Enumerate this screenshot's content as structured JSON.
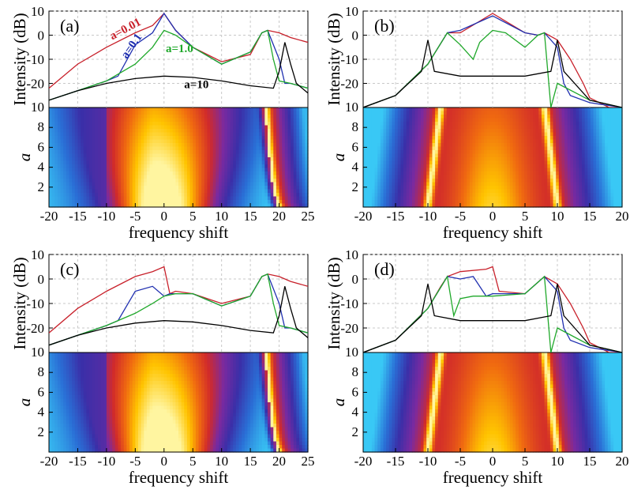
{
  "chart_data": [
    {
      "panel_label": "(a)",
      "type": "line",
      "ylabel": "Intensity (dB)",
      "xlim": [
        -20,
        25
      ],
      "ylim": [
        -30,
        10
      ],
      "yticks": [
        10,
        0,
        -10,
        -20
      ],
      "grid": true,
      "series": [
        {
          "name": "a=0.01",
          "color": "#c8202a",
          "x": [
            -20,
            -15,
            -10,
            -5,
            -2,
            0,
            2,
            5,
            10,
            15,
            17,
            18,
            20,
            22,
            25
          ],
          "y": [
            -22,
            -12,
            -5,
            1,
            4,
            9,
            2,
            -5,
            -11,
            -8,
            1,
            2,
            1,
            -1,
            -3
          ]
        },
        {
          "name": "a=0.1",
          "color": "#2030b0",
          "x": [
            -20,
            -15,
            -10,
            -8,
            -5,
            -2,
            0,
            2,
            5,
            10,
            15,
            17,
            18,
            20,
            21,
            22,
            25
          ],
          "y": [
            -27,
            -23,
            -19,
            -17,
            -4,
            1,
            9,
            2,
            -5,
            -12,
            -7,
            1,
            2,
            -10,
            -20,
            -20,
            -22
          ]
        },
        {
          "name": "a=1.0",
          "color": "#1fa82a",
          "x": [
            -20,
            -15,
            -10,
            -5,
            -2,
            0,
            2,
            5,
            10,
            15,
            17,
            18,
            19,
            20,
            22,
            25
          ],
          "y": [
            -27,
            -23,
            -19,
            -12,
            -5,
            2,
            0,
            -5,
            -12,
            -7,
            1,
            2,
            -10,
            -19,
            -20,
            -22
          ]
        },
        {
          "name": "a=10",
          "color": "#000000",
          "x": [
            -20,
            -15,
            -10,
            -5,
            0,
            5,
            10,
            15,
            19,
            20,
            21,
            22,
            23,
            25
          ],
          "y": [
            -27,
            -23,
            -20,
            -18,
            -17,
            -17.5,
            -19,
            -21,
            -22,
            -15,
            -3,
            -12,
            -20,
            -24
          ]
        }
      ],
      "heatmap": {
        "ylabel": "a",
        "xlabel": "frequency shift",
        "xticks": [
          -20,
          -15,
          -10,
          -5,
          0,
          5,
          10,
          15,
          20,
          25
        ],
        "yticks": [
          2,
          4,
          6,
          8,
          10
        ],
        "xlim": [
          -20,
          25
        ],
        "ylim": [
          0,
          10
        ],
        "colormap": [
          "#39c8f5",
          "#2a6fd6",
          "#3a2fa8",
          "#7a2aa0",
          "#d12a2a",
          "#f06a10",
          "#ffc400",
          "#fff5a0"
        ],
        "center_peak_x": 0,
        "side_peak_x": 17.5,
        "side_peak_x_at_ymin": 20,
        "symmetric": false
      }
    },
    {
      "panel_label": "(b)",
      "type": "line",
      "ylabel": "Intensity (dB)",
      "xlim": [
        -20,
        20
      ],
      "ylim": [
        -30,
        10
      ],
      "yticks": [
        10,
        0,
        -10,
        -20
      ],
      "grid": true,
      "series": [
        {
          "name": "",
          "color": "#c8202a",
          "x": [
            -20,
            -15,
            -10,
            -7,
            -5,
            0,
            5,
            7,
            8,
            10,
            12,
            14,
            15,
            18,
            20
          ],
          "y": [
            -30,
            -25,
            -12,
            1,
            1,
            9,
            1,
            0,
            1,
            -2,
            -10,
            -20,
            -26,
            -30,
            -30
          ]
        },
        {
          "name": "",
          "color": "#2030b0",
          "x": [
            -20,
            -15,
            -10,
            -7,
            -5,
            0,
            5,
            7,
            8,
            10,
            11,
            12,
            15,
            20
          ],
          "y": [
            -30,
            -25,
            -12,
            1,
            2,
            8,
            1,
            0,
            1,
            -5,
            -20,
            -25,
            -28,
            -30
          ]
        },
        {
          "name": "",
          "color": "#1fa82a",
          "x": [
            -20,
            -15,
            -10,
            -7,
            -5,
            -3,
            -2,
            0,
            2,
            5,
            7,
            8,
            9,
            10,
            15,
            20
          ],
          "y": [
            -30,
            -25,
            -12,
            1,
            -4,
            -10,
            -3,
            2,
            1,
            -5,
            0,
            1,
            -30,
            -20,
            -27,
            -30
          ]
        },
        {
          "name": "",
          "color": "#000000",
          "x": [
            -20,
            -15,
            -11,
            -10,
            -9,
            -5,
            0,
            5,
            9,
            10,
            11,
            15,
            20
          ],
          "y": [
            -30,
            -25,
            -15,
            -2,
            -15,
            -17,
            -17,
            -17,
            -15,
            -2,
            -15,
            -27,
            -30
          ]
        }
      ],
      "heatmap": {
        "ylabel": "a",
        "xlabel": "frequency shift",
        "xticks": [
          -20,
          -15,
          -10,
          -5,
          0,
          5,
          10,
          15,
          20
        ],
        "yticks": [
          2,
          4,
          6,
          8,
          10
        ],
        "xlim": [
          -20,
          20
        ],
        "ylim": [
          0,
          10
        ],
        "colormap": [
          "#39c8f5",
          "#2a6fd6",
          "#3a2fa8",
          "#7a2aa0",
          "#d12a2a",
          "#f06a10",
          "#ffc400",
          "#fff5a0"
        ],
        "center_peak_x": 0,
        "side_peak_x": 8,
        "side_peak_x_at_ymin": 10,
        "symmetric": true
      }
    },
    {
      "panel_label": "(c)",
      "type": "line",
      "ylabel": "Intensity (dB)",
      "xlim": [
        -20,
        25
      ],
      "ylim": [
        -30,
        10
      ],
      "yticks": [
        10,
        0,
        -10,
        -20
      ],
      "grid": true,
      "series": [
        {
          "name": "",
          "color": "#c8202a",
          "x": [
            -20,
            -15,
            -10,
            -5,
            -2,
            0,
            1,
            2,
            5,
            10,
            15,
            17,
            18,
            20,
            22,
            25
          ],
          "y": [
            -22,
            -12,
            -5,
            1,
            3,
            5,
            -6,
            -5,
            -6,
            -10,
            -7,
            1,
            2,
            1,
            -1,
            -3
          ]
        },
        {
          "name": "",
          "color": "#2030b0",
          "x": [
            -20,
            -15,
            -10,
            -8,
            -5,
            -2,
            0,
            1,
            5,
            10,
            15,
            17,
            18,
            20,
            21,
            22,
            25
          ],
          "y": [
            -27,
            -23,
            -19,
            -17,
            -5,
            -3,
            -7,
            -6,
            -6,
            -11,
            -7,
            1,
            2,
            -10,
            -20,
            -20,
            -22
          ]
        },
        {
          "name": "",
          "color": "#1fa82a",
          "x": [
            -20,
            -15,
            -10,
            -5,
            -2,
            0,
            2,
            5,
            10,
            15,
            17,
            18,
            19,
            20,
            22,
            25
          ],
          "y": [
            -27,
            -23,
            -19,
            -14,
            -10,
            -7,
            -6,
            -6,
            -11,
            -7,
            1,
            2,
            -10,
            -19,
            -20,
            -22
          ]
        },
        {
          "name": "",
          "color": "#000000",
          "x": [
            -20,
            -15,
            -10,
            -5,
            0,
            5,
            10,
            15,
            19,
            20,
            21,
            22,
            23,
            25
          ],
          "y": [
            -27,
            -23,
            -20,
            -18,
            -17,
            -17.5,
            -19,
            -21,
            -22,
            -15,
            -3,
            -12,
            -20,
            -24
          ]
        }
      ],
      "heatmap": {
        "ylabel": "a",
        "xlabel": "frequency shift",
        "xticks": [
          -20,
          -15,
          -10,
          -5,
          0,
          5,
          10,
          15,
          20,
          25
        ],
        "yticks": [
          2,
          4,
          6,
          8,
          10
        ],
        "xlim": [
          -20,
          25
        ],
        "ylim": [
          0,
          10
        ],
        "colormap": [
          "#39c8f5",
          "#2a6fd6",
          "#3a2fa8",
          "#7a2aa0",
          "#d12a2a",
          "#f06a10",
          "#ffc400",
          "#fff5a0"
        ],
        "center_peak_x": 0,
        "side_peak_x": 17.5,
        "side_peak_x_at_ymin": 20,
        "symmetric": false
      }
    },
    {
      "panel_label": "(d)",
      "type": "line",
      "ylabel": "Intensity (dB)",
      "xlim": [
        -20,
        20
      ],
      "ylim": [
        -30,
        10
      ],
      "yticks": [
        10,
        0,
        -10,
        -20
      ],
      "grid": true,
      "series": [
        {
          "name": "",
          "color": "#c8202a",
          "x": [
            -20,
            -15,
            -10,
            -8,
            -7,
            -5,
            -1,
            0,
            1,
            5,
            8,
            10,
            12,
            14,
            15,
            18,
            20
          ],
          "y": [
            -30,
            -25,
            -12,
            -3,
            1,
            3,
            4,
            5,
            -5,
            -6,
            1,
            -2,
            -10,
            -20,
            -26,
            -30,
            -30
          ]
        },
        {
          "name": "",
          "color": "#2030b0",
          "x": [
            -20,
            -15,
            -10,
            -7,
            -5,
            -3,
            -1,
            0,
            5,
            8,
            10,
            11,
            12,
            15,
            20
          ],
          "y": [
            -30,
            -25,
            -12,
            1,
            0,
            1,
            -7,
            -6,
            -6,
            1,
            -5,
            -20,
            -25,
            -28,
            -30
          ]
        },
        {
          "name": "",
          "color": "#1fa82a",
          "x": [
            -20,
            -15,
            -10,
            -7,
            -6,
            -5,
            -3,
            0,
            5,
            8,
            9,
            10,
            15,
            20
          ],
          "y": [
            -30,
            -25,
            -12,
            1,
            -15,
            -8,
            -7,
            -7,
            -6,
            1,
            -30,
            -20,
            -27,
            -30
          ]
        },
        {
          "name": "",
          "color": "#000000",
          "x": [
            -20,
            -15,
            -11,
            -10,
            -9,
            -5,
            0,
            5,
            9,
            10,
            11,
            15,
            20
          ],
          "y": [
            -30,
            -25,
            -15,
            -2,
            -15,
            -17,
            -17,
            -17,
            -15,
            -2,
            -15,
            -27,
            -30
          ]
        }
      ],
      "heatmap": {
        "ylabel": "a",
        "xlabel": "frequency shift",
        "xticks": [
          -20,
          -15,
          -10,
          -5,
          0,
          5,
          10,
          15,
          20
        ],
        "yticks": [
          2,
          4,
          6,
          8,
          10
        ],
        "xlim": [
          -20,
          20
        ],
        "ylim": [
          0,
          10
        ],
        "colormap": [
          "#39c8f5",
          "#2a6fd6",
          "#3a2fa8",
          "#7a2aa0",
          "#d12a2a",
          "#f06a10",
          "#ffc400",
          "#fff5a0"
        ],
        "center_peak_x": 0,
        "side_peak_x": 8,
        "side_peak_x_at_ymin": 10,
        "symmetric": true
      }
    }
  ]
}
